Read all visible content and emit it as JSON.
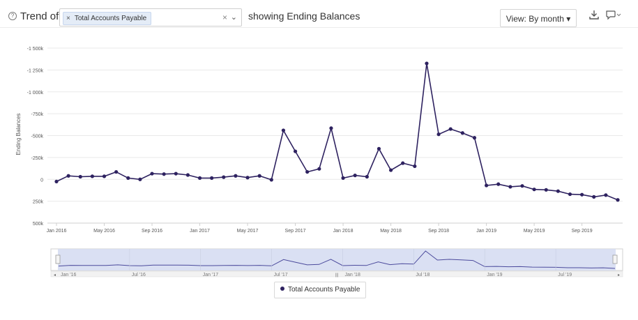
{
  "header": {
    "help_icon": "question-circle-icon",
    "trend_label": "Trend of",
    "selected_account": "Total Accounts Payable",
    "chip_remove": "×",
    "clear_symbol": "×",
    "showing_label": "showing Ending Balances",
    "view_label": "View: By month ▾",
    "download_icon": "download-icon",
    "comment_icon": "comment-icon"
  },
  "legend": {
    "label": "Total Accounts Payable"
  },
  "navigator": {
    "labels": [
      "Jan '16",
      "Jul '16",
      "Jan '17",
      "Jul '17",
      "Jan '18",
      "Jul '18",
      "Jan '19",
      "Jul '19"
    ]
  },
  "colors": {
    "series": "#2e2260",
    "navigator_fill": "#d6ddf2",
    "grid": "#e9e9e9"
  },
  "chart_data": {
    "type": "line",
    "ylabel": "Ending Balances",
    "ylim": [
      500000,
      -1500000
    ],
    "y_ticks": [
      -1500000,
      -1250000,
      -1000000,
      -750000,
      -500000,
      -250000,
      0,
      250000,
      500000
    ],
    "y_tick_labels": [
      "-1 500k",
      "-1 250k",
      "-1 000k",
      "-750k",
      "-500k",
      "-250k",
      "0",
      "250k",
      "500k"
    ],
    "x_tick_labels": [
      "Jan 2016",
      "May 2016",
      "Sep 2016",
      "Jan 2017",
      "May 2017",
      "Sep 2017",
      "Jan 2018",
      "May 2018",
      "Sep 2018",
      "Jan 2019",
      "May 2019",
      "Sep 2019"
    ],
    "grid": true,
    "legend_position": "bottom-center",
    "series": [
      {
        "name": "Total Accounts Payable",
        "x": [
          "Jan 2016",
          "Feb 2016",
          "Mar 2016",
          "Apr 2016",
          "May 2016",
          "Jun 2016",
          "Jul 2016",
          "Aug 2016",
          "Sep 2016",
          "Oct 2016",
          "Nov 2016",
          "Dec 2016",
          "Jan 2017",
          "Feb 2017",
          "Mar 2017",
          "Apr 2017",
          "May 2017",
          "Jun 2017",
          "Jul 2017",
          "Aug 2017",
          "Sep 2017",
          "Oct 2017",
          "Nov 2017",
          "Dec 2017",
          "Jan 2018",
          "Feb 2018",
          "Mar 2018",
          "Apr 2018",
          "May 2018",
          "Jun 2018",
          "Jul 2018",
          "Aug 2018",
          "Sep 2018",
          "Oct 2018",
          "Nov 2018",
          "Dec 2018",
          "Jan 2019",
          "Feb 2019",
          "Mar 2019",
          "Apr 2019",
          "May 2019",
          "Jun 2019",
          "Jul 2019",
          "Aug 2019",
          "Sep 2019",
          "Oct 2019",
          "Nov 2019",
          "Dec 2019"
        ],
        "values": [
          25000,
          -40000,
          -30000,
          -35000,
          -35000,
          -85000,
          -15000,
          0,
          -65000,
          -60000,
          -65000,
          -50000,
          -15000,
          -15000,
          -25000,
          -40000,
          -20000,
          -40000,
          5000,
          -560000,
          -320000,
          -85000,
          -120000,
          -585000,
          -15000,
          -45000,
          -30000,
          -350000,
          -105000,
          -185000,
          -150000,
          -1325000,
          -515000,
          -575000,
          -530000,
          -475000,
          70000,
          55000,
          85000,
          75000,
          115000,
          120000,
          135000,
          170000,
          175000,
          200000,
          180000,
          235000
        ]
      }
    ]
  }
}
